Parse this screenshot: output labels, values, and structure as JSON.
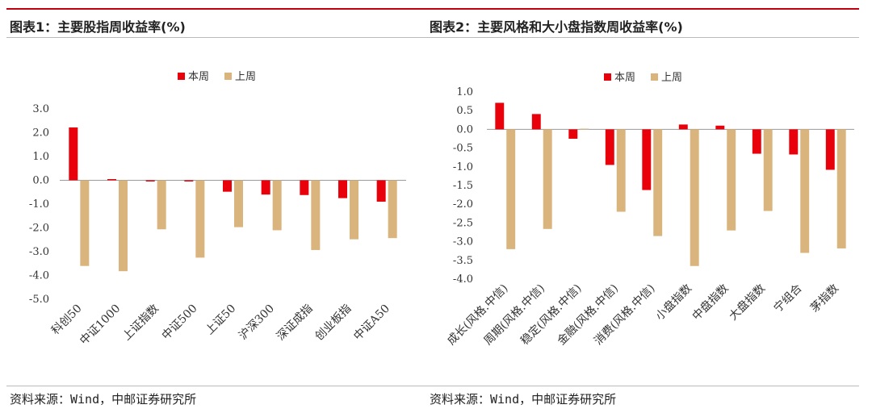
{
  "left": {
    "title": "图表1：主要股指周收益率(%)",
    "source": "资料来源：Wind，中邮证券研究所"
  },
  "right": {
    "title": "图表2：主要风格和大小盘指数周收益率(%)",
    "source": "资料来源：Wind，中邮证券研究所"
  },
  "colors": {
    "this_week": "#e8000b",
    "last_week": "#d9b47c",
    "accent": "#c0000b"
  },
  "chart_data": [
    {
      "type": "bar",
      "categories": [
        "科创50",
        "中证1000",
        "上证指数",
        "中证500",
        "上证50",
        "沪深300",
        "深证成指",
        "创业板指",
        "中证A50"
      ],
      "series": [
        {
          "name": "本周",
          "values": [
            2.22,
            0.05,
            -0.05,
            -0.05,
            -0.48,
            -0.6,
            -0.62,
            -0.75,
            -0.9
          ]
        },
        {
          "name": "上周",
          "values": [
            -3.6,
            -3.82,
            -2.06,
            -3.25,
            -1.97,
            -2.1,
            -2.93,
            -2.48,
            -2.43
          ]
        }
      ],
      "yticks": [
        "3.0",
        "2.0",
        "1.0",
        "0.0",
        "-1.0",
        "-2.0",
        "-3.0",
        "-4.0",
        "-5.0"
      ],
      "ylim": [
        -5,
        3
      ],
      "legend": "top-center"
    },
    {
      "type": "bar",
      "categories": [
        "成长(风格.中信)",
        "周期(风格.中信)",
        "稳定(风格.中信)",
        "金融(风格.中信)",
        "消费(风格.中信)",
        "小盘指数",
        "中盘指数",
        "大盘指数",
        "宁组合",
        "茅指数"
      ],
      "series": [
        {
          "name": "本周",
          "values": [
            0.71,
            0.41,
            -0.25,
            -0.95,
            -1.62,
            0.13,
            0.1,
            -0.65,
            -0.67,
            -1.08
          ]
        },
        {
          "name": "上周",
          "values": [
            -3.2,
            -2.66,
            0.02,
            -2.2,
            -2.85,
            -3.65,
            -2.7,
            -2.18,
            -3.3,
            -3.18
          ]
        }
      ],
      "yticks": [
        "1.0",
        "0.5",
        "0.0",
        "-0.5",
        "-1.0",
        "-1.5",
        "-2.0",
        "-2.5",
        "-3.0",
        "-3.5",
        "-4.0"
      ],
      "ylim": [
        -4,
        1
      ],
      "legend": "top-center"
    }
  ]
}
